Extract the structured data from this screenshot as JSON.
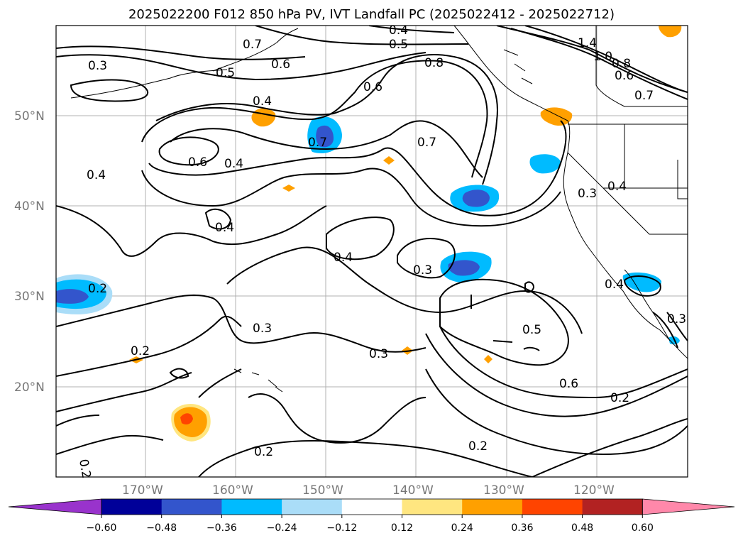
{
  "title": "2025022200 F012 850 hPa PV, IVT Landfall PC (2025022412 - 2025022712)",
  "lat_labels": [
    "50°N",
    "40°N",
    "30°N",
    "20°N"
  ],
  "lon_labels": [
    "170°W",
    "160°W",
    "150°W",
    "140°W",
    "130°W",
    "120°W"
  ],
  "contour_labels": [
    "0.4",
    "0.5",
    "0.7",
    "1.4",
    "1.0",
    "0.8",
    "0.6",
    "0.7",
    "0.3",
    "0.5",
    "0.6",
    "0.8",
    "0.6",
    "0.4",
    "0.7",
    "0.6",
    "0.4",
    "0.7",
    "0.4",
    "0.3",
    "0.4",
    "0.4",
    "0.4",
    "0.3",
    "0.2",
    "0.3",
    "0.2",
    "0.3",
    "0.5",
    "0.6",
    "0.2",
    "0.2",
    "0.2",
    "0.4",
    "0.3"
  ],
  "colorbar": {
    "ticks": [
      "−0.60",
      "−0.48",
      "−0.36",
      "−0.24",
      "−0.12",
      "0.12",
      "0.24",
      "0.36",
      "0.48",
      "0.60"
    ],
    "colors": [
      "#9933cc",
      "#000099",
      "#3355cc",
      "#00bbff",
      "#aaddf8",
      "#ffffff",
      "#ffe680",
      "#ffa000",
      "#ff4400",
      "#b22222",
      "#ff88aa"
    ]
  }
}
